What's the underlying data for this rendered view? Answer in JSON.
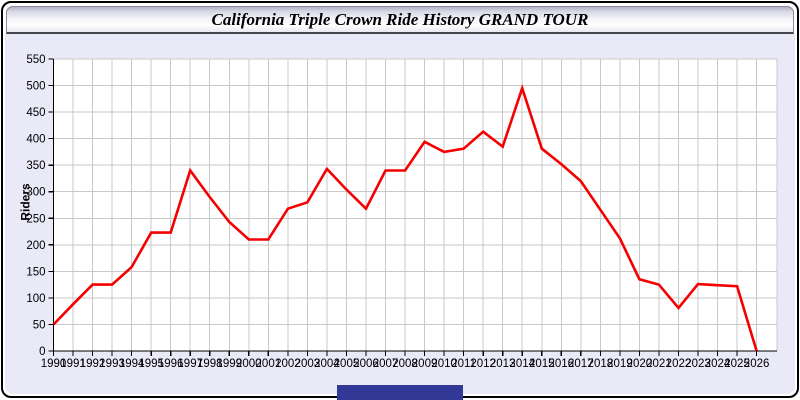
{
  "window": {
    "title": "California Triple Crown Ride History GRAND TOUR"
  },
  "colors": {
    "panel_bg": "#e9e9f8",
    "grid": "#c9c9c9",
    "axis": "#000000",
    "line": "#f40000",
    "footer_bar": "#313896"
  },
  "chart_data": {
    "type": "line",
    "title": "California Triple Crown Ride History GRAND TOUR",
    "xlabel": "",
    "ylabel": "Riders",
    "ylim": [
      0,
      550
    ],
    "ytick_step": 50,
    "grid": true,
    "legend": "none",
    "line_color": "#f40000",
    "x": [
      1990,
      1991,
      1992,
      1993,
      1994,
      1995,
      1996,
      1997,
      1998,
      1999,
      2000,
      2001,
      2002,
      2003,
      2004,
      2005,
      2006,
      2007,
      2008,
      2009,
      2010,
      2011,
      2012,
      2013,
      2014,
      2015,
      2016,
      2017,
      2018,
      2019,
      2020,
      2021,
      2022,
      2023,
      2024,
      2025,
      2026
    ],
    "series": [
      {
        "name": "Riders",
        "values": [
          50,
          88,
          125,
          125,
          158,
          223,
          223,
          340,
          290,
          243,
          210,
          210,
          268,
          280,
          343,
          304,
          268,
          340,
          340,
          394,
          375,
          381,
          413,
          385,
          495,
          381,
          352,
          320,
          266,
          212,
          135,
          125,
          81,
          126,
          124,
          122,
          0
        ]
      }
    ]
  }
}
